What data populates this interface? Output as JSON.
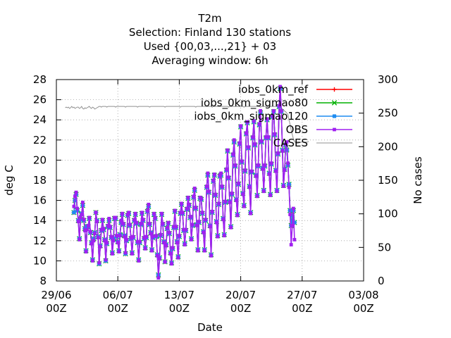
{
  "chart_data": {
    "type": "line",
    "title_lines": [
      "T2m",
      "Selection: Finland    130 stations",
      "Used {00,03,...,21} + 03",
      "Averaging window:  6h"
    ],
    "xlabel": "Date",
    "ylabel": "deg C",
    "y2label": "No cases",
    "x_range_days": [
      0,
      35
    ],
    "ylim": [
      8,
      28
    ],
    "y2lim": [
      0,
      300
    ],
    "y_ticks": [
      "8",
      "10",
      "12",
      "14",
      "16",
      "18",
      "20",
      "22",
      "24",
      "26",
      "28"
    ],
    "y2_ticks": [
      "0",
      "50",
      "100",
      "150",
      "200",
      "250",
      "300"
    ],
    "x_ticks": [
      {
        "day": 0,
        "line1": "29/06",
        "line2": "00Z"
      },
      {
        "day": 7,
        "line1": "06/07",
        "line2": "00Z"
      },
      {
        "day": 14,
        "line1": "13/07",
        "line2": "00Z"
      },
      {
        "day": 21,
        "line1": "20/07",
        "line2": "00Z"
      },
      {
        "day": 28,
        "line1": "27/07",
        "line2": "00Z"
      },
      {
        "day": 35,
        "line1": "03/08",
        "line2": "00Z"
      }
    ],
    "grid": "dotted at ticks",
    "legend_placement": "top-right",
    "series": [
      {
        "name": "iobs_0km_ref",
        "color": "#ff0000",
        "marker": "plus",
        "axis": "left"
      },
      {
        "name": "iobs_0km_sigmao80",
        "color": "#00b000",
        "marker": "x",
        "axis": "left"
      },
      {
        "name": "iobs_0km_sigmao120",
        "color": "#1e8cf0",
        "marker": "star",
        "axis": "left"
      },
      {
        "name": "OBS",
        "color": "#a020f0",
        "marker": "square",
        "axis": "left"
      },
      {
        "name": "CASES",
        "color": "#909090",
        "marker": "none",
        "axis": "right"
      }
    ],
    "model_values": {
      "t_start_day": 2.0,
      "step_hours": 3,
      "values": [
        14.8,
        16.0,
        16.6,
        15.0,
        14.0,
        12.2,
        14.1,
        14.7,
        15.5,
        14.0,
        13.2,
        11.0,
        13.4,
        13.4,
        14.2,
        12.8,
        11.8,
        10.1,
        12.2,
        12.8,
        14.8,
        14.0,
        12.4,
        9.7,
        11.5,
        13.0,
        14.0,
        13.1,
        12.1,
        10.0,
        11.7,
        13.4,
        14.0,
        13.3,
        12.3,
        10.8,
        12.2,
        14.2,
        14.2,
        12.4,
        11.9,
        11.0,
        12.6,
        13.8,
        14.6,
        13.6,
        12.5,
        10.7,
        12.0,
        14.5,
        14.7,
        13.5,
        12.2,
        10.8,
        12.3,
        14.0,
        14.6,
        13.7,
        11.8,
        10.1,
        11.8,
        13.6,
        14.7,
        14.0,
        12.2,
        11.3,
        12.3,
        14.9,
        15.4,
        13.6,
        12.8,
        11.1,
        12.3,
        14.6,
        14.2,
        12.4,
        10.6,
        8.6,
        10.3,
        12.5,
        14.6,
        13.6,
        11.9,
        9.9,
        11.6,
        13.2,
        13.7,
        12.7,
        10.8,
        9.8,
        11.2,
        13.3,
        14.9,
        13.3,
        11.9,
        10.4,
        12.4,
        14.7,
        15.6,
        14.7,
        13.0,
        11.7,
        13.0,
        15.1,
        16.2,
        15.5,
        14.3,
        12.2,
        13.5,
        16.3,
        17.0,
        15.2,
        13.6,
        11.1,
        13.8,
        16.2,
        16.1,
        14.7,
        12.9,
        11.1,
        14.0,
        17.3,
        18.5,
        16.8,
        13.5,
        10.6,
        14.8,
        17.9,
        18.5,
        16.5,
        13.9,
        12.5,
        15.6,
        18.4,
        18.5,
        17.3,
        14.2,
        12.6,
        15.8,
        19.0,
        20.9,
        18.2,
        15.9,
        13.4,
        16.6,
        20.5,
        21.8,
        19.4,
        16.1,
        14.6,
        17.6,
        21.6,
        23.3,
        19.8,
        16.7,
        15.5,
        18.9,
        22.6,
        23.7,
        21.2,
        17.4,
        14.8,
        18.8,
        22.2,
        23.8,
        21.5,
        18.5,
        16.5,
        19.4,
        23.5,
        24.7,
        21.8,
        19.2,
        17.0,
        19.4,
        22.2,
        24.0,
        22.2,
        18.7,
        16.6,
        19.6,
        24.3,
        24.8,
        22.5,
        19.0,
        17.0,
        20.6,
        25.3,
        27.1,
        24.8,
        21.0,
        17.5,
        19.1,
        21.5,
        21.0,
        19.5,
        17.6,
        15.0,
        13.5,
        14.5,
        15.0,
        13.8
      ]
    },
    "obs_values": {
      "t_start_day": 2.0,
      "step_hours": 3,
      "values": [
        15.4,
        16.4,
        16.8,
        15.2,
        13.9,
        12.1,
        14.3,
        14.6,
        15.8,
        14.1,
        13.0,
        10.9,
        13.1,
        13.5,
        14.3,
        12.9,
        11.7,
        10.0,
        12.0,
        12.7,
        14.8,
        13.9,
        12.3,
        9.8,
        11.4,
        13.1,
        14.1,
        13.2,
        12.0,
        10.1,
        11.8,
        13.5,
        14.2,
        13.4,
        12.4,
        10.7,
        12.0,
        14.3,
        14.3,
        12.5,
        11.8,
        10.9,
        12.5,
        14.0,
        14.7,
        13.7,
        12.4,
        10.8,
        12.1,
        14.6,
        14.8,
        13.6,
        12.3,
        10.7,
        12.4,
        14.1,
        14.7,
        13.8,
        11.9,
        10.0,
        11.9,
        13.7,
        14.8,
        14.1,
        12.3,
        11.2,
        12.4,
        15.0,
        15.6,
        13.7,
        12.7,
        11.0,
        12.4,
        14.7,
        14.3,
        12.5,
        10.5,
        8.3,
        10.2,
        12.6,
        14.7,
        13.7,
        11.8,
        9.9,
        11.5,
        13.3,
        13.8,
        12.8,
        10.7,
        9.7,
        11.3,
        13.4,
        15.0,
        13.4,
        11.8,
        10.3,
        12.5,
        14.8,
        15.7,
        14.8,
        13.1,
        11.6,
        13.1,
        15.2,
        16.3,
        15.6,
        14.4,
        12.1,
        13.6,
        16.4,
        17.2,
        15.3,
        13.5,
        11.0,
        13.9,
        16.3,
        16.2,
        14.8,
        12.8,
        11.0,
        14.1,
        17.4,
        18.7,
        16.9,
        13.4,
        10.5,
        14.9,
        18.0,
        18.6,
        16.6,
        13.8,
        12.4,
        15.7,
        18.5,
        18.7,
        17.4,
        14.1,
        12.5,
        15.9,
        19.1,
        21.0,
        18.3,
        15.8,
        13.3,
        16.7,
        20.6,
        22.0,
        19.5,
        16.0,
        14.5,
        17.7,
        21.7,
        23.4,
        19.9,
        16.6,
        15.4,
        19.0,
        22.7,
        23.8,
        21.3,
        17.3,
        14.7,
        18.9,
        22.3,
        23.9,
        21.6,
        18.4,
        16.4,
        19.5,
        23.6,
        24.9,
        21.9,
        19.1,
        16.9,
        19.5,
        22.3,
        24.1,
        22.3,
        18.6,
        16.5,
        19.7,
        24.4,
        24.9,
        22.6,
        18.9,
        16.9,
        20.7,
        25.4,
        27.3,
        24.9,
        20.9,
        17.4,
        19.0,
        21.6,
        21.8,
        19.7,
        17.3,
        14.6,
        11.6,
        13.5,
        15.2,
        12.1
      ]
    },
    "cases_values": {
      "t_start_day": 1.0,
      "step_hours": 3,
      "values": [
        258,
        259,
        258,
        259,
        257,
        258,
        260,
        258,
        259,
        257,
        258,
        259,
        259,
        257,
        258,
        260,
        257,
        256,
        258,
        257,
        258,
        259,
        260,
        258,
        257,
        259,
        258,
        256,
        257,
        258,
        259,
        260,
        260,
        259,
        260,
        260,
        260,
        260,
        259,
        260,
        260,
        260,
        260,
        260,
        260,
        260,
        259,
        260,
        260,
        260,
        260,
        260,
        260,
        260,
        260,
        259,
        260,
        260,
        260,
        260,
        260,
        260,
        260,
        260,
        260,
        260,
        259,
        260,
        260,
        260,
        260,
        260,
        260,
        260,
        260,
        260,
        260,
        259,
        260,
        260,
        260,
        260,
        260,
        260,
        260,
        260,
        260,
        260,
        260,
        260,
        260,
        259,
        260,
        260,
        260,
        260,
        260,
        260,
        260,
        260,
        260,
        260,
        260,
        260,
        260,
        259,
        260,
        260,
        260,
        260,
        260,
        260,
        260,
        260,
        260,
        260,
        260,
        260,
        260,
        259,
        260,
        260,
        260,
        260,
        260,
        260,
        260,
        260,
        260,
        260,
        260,
        260,
        260,
        260,
        259,
        260,
        260,
        260,
        260,
        260,
        260,
        260,
        260,
        260,
        260,
        260,
        260,
        260,
        260,
        259,
        260,
        260,
        260,
        260,
        260,
        260,
        260,
        260,
        260,
        260,
        260,
        260,
        260,
        259,
        260,
        260,
        260,
        260,
        260,
        260,
        260,
        260,
        260,
        260,
        260,
        260,
        260,
        260,
        259,
        260,
        260,
        260,
        260,
        260,
        260,
        260,
        260,
        260,
        260,
        260,
        260,
        260,
        260,
        260,
        260,
        260,
        259,
        258,
        256,
        255,
        253,
        252,
        250,
        248,
        240,
        233,
        225,
        218,
        212,
        208,
        206,
        205,
        205,
        206,
        206,
        207,
        207,
        207,
        207,
        207,
        207,
        207,
        208
      ]
    }
  }
}
